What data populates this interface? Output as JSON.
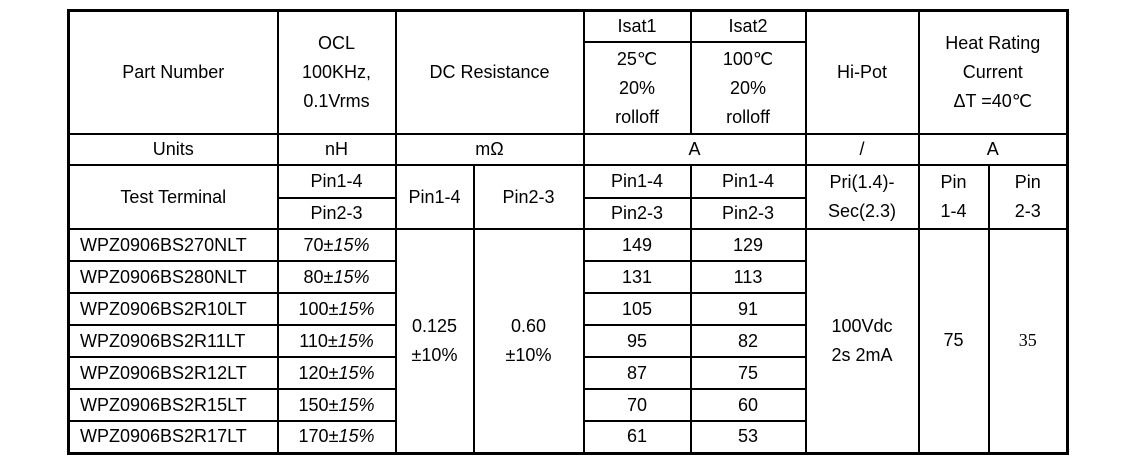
{
  "header": {
    "part_number": "Part Number",
    "ocl": [
      "OCL",
      "100KHz,",
      "0.1Vrms"
    ],
    "dc_resistance": "DC Resistance",
    "isat1": "Isat1",
    "isat1_cond": [
      "25℃",
      "20%",
      "rolloff"
    ],
    "isat2": "Isat2",
    "isat2_cond": [
      "100℃",
      "20%",
      "rolloff"
    ],
    "hipot": "Hi-Pot",
    "heat": [
      "Heat Rating",
      "Current",
      "ΔT =40℃"
    ]
  },
  "units": {
    "label": "Units",
    "ocl": "nH",
    "dcr": "mΩ",
    "isat": "A",
    "hipot": "/",
    "heat": "A"
  },
  "test_terminal": {
    "label": "Test Terminal",
    "ocl": [
      "Pin1-4",
      "Pin2-3"
    ],
    "dcr1": "Pin1-4",
    "dcr2": "Pin2-3",
    "isat1": [
      "Pin1-4",
      "Pin2-3"
    ],
    "isat2": [
      "Pin1-4",
      "Pin2-3"
    ],
    "hipot": [
      "Pri(1.4)-",
      "Sec(2.3)"
    ],
    "heat1": [
      "Pin",
      "1-4"
    ],
    "heat2": [
      "Pin",
      "2-3"
    ]
  },
  "rows": [
    {
      "part": "WPZ0906BS270NLT",
      "ocl": "70",
      "tol": "15%",
      "isat1": "149",
      "isat2": "129"
    },
    {
      "part": "WPZ0906BS280NLT",
      "ocl": "80",
      "tol": "15%",
      "isat1": "131",
      "isat2": "113"
    },
    {
      "part": "WPZ0906BS2R10LT",
      "ocl": "100",
      "tol": "15%",
      "isat1": "105",
      "isat2": "91"
    },
    {
      "part": "WPZ0906BS2R11LT",
      "ocl": "110",
      "tol": "15%",
      "isat1": "95",
      "isat2": "82"
    },
    {
      "part": "WPZ0906BS2R12LT",
      "ocl": "120",
      "tol": "15%",
      "isat1": "87",
      "isat2": "75"
    },
    {
      "part": "WPZ0906BS2R15LT",
      "ocl": "150",
      "tol": "15%",
      "isat1": "70",
      "isat2": "60"
    },
    {
      "part": "WPZ0906BS2R17LT",
      "ocl": "170",
      "tol": "15%",
      "isat1": "61",
      "isat2": "53"
    }
  ],
  "shared": {
    "pm": "±",
    "dcr1": [
      "0.125",
      "±10%"
    ],
    "dcr2": [
      "0.60",
      "±10%"
    ],
    "hipot": [
      "100Vdc",
      "2s 2mA"
    ],
    "heat1": "75",
    "heat2": "35"
  }
}
